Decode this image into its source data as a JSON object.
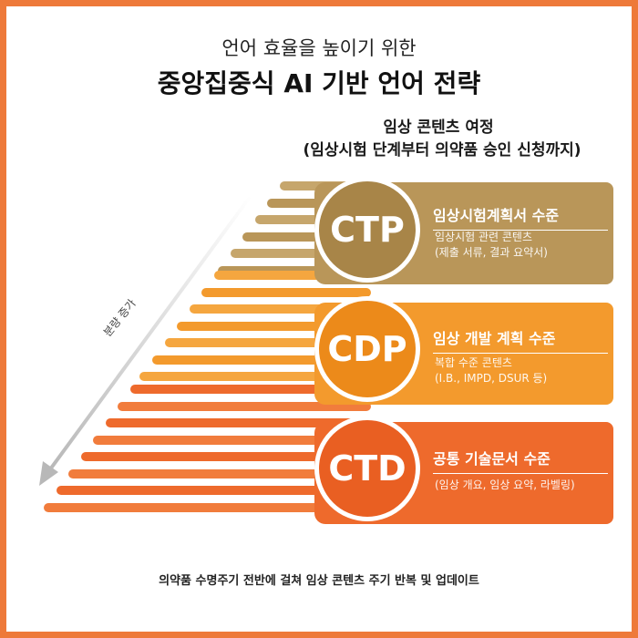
{
  "header": {
    "subtitle": "언어 효율을 높이기 위한",
    "title": "중앙집중식 AI 기반 언어 전략"
  },
  "journey": {
    "title": "임상 콘텐츠 여정",
    "subtitle": "(임상시험 단계부터 의약품 승인 신청까지)"
  },
  "volume_label": "분량 증가",
  "levels": [
    {
      "code": "CTP",
      "title": "임상시험계획서 수준",
      "desc_line1": "임상시험 관련 콘텐츠",
      "desc_line2": "(제출 서류, 결과 요약서)",
      "color": "#b99659",
      "circle_color": "#a88548"
    },
    {
      "code": "CDP",
      "title": "임상 개발 계획 수준",
      "desc_line1": "복합 수준 콘텐츠",
      "desc_line2": "(I.B., IMPD, DSUR 등)",
      "color": "#f39a2d",
      "circle_color": "#ec8a1a"
    },
    {
      "code": "CTD",
      "title": "공통 기술문서 수준",
      "desc_line1": "(임상 개요, 임상 요약, 라벨링)",
      "desc_line2": "",
      "color": "#ee6a2c",
      "circle_color": "#e95f22"
    }
  ],
  "footer": "의약품 수명주기 전반에 걸쳐 임상 콘텐츠 주기 반복 및 업데이트"
}
